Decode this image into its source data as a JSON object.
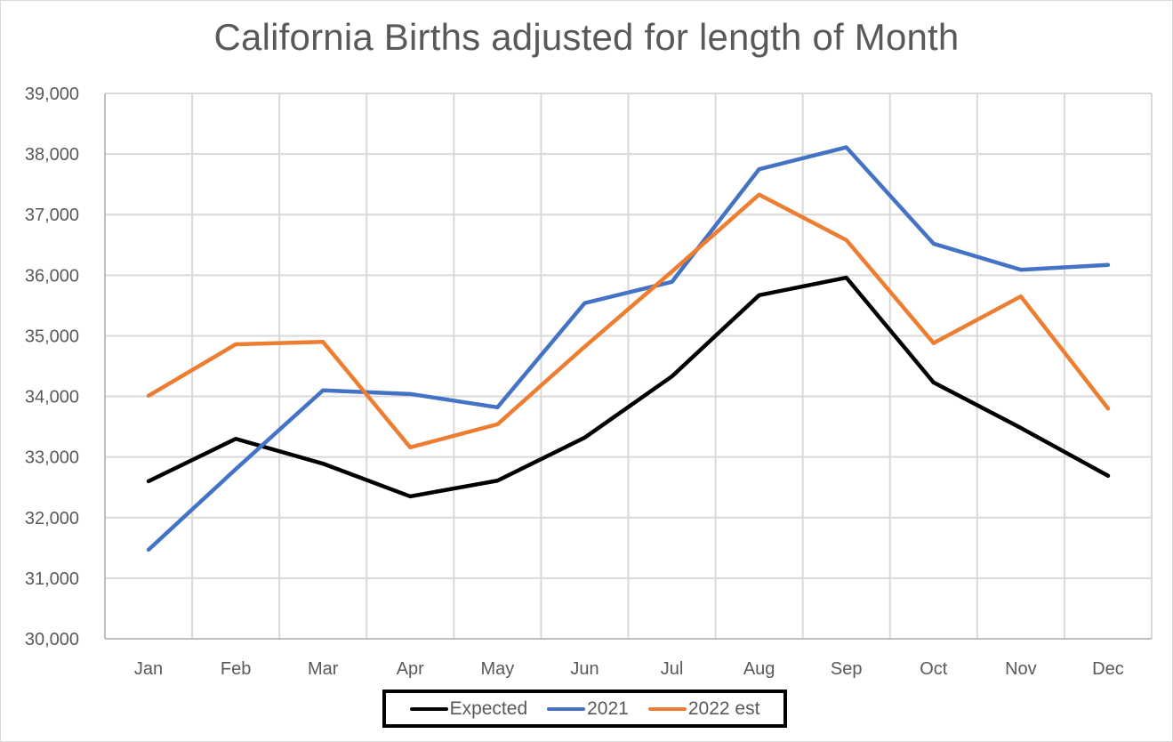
{
  "chart_data": {
    "type": "line",
    "title": "California Births adjusted for length of Month",
    "xlabel": "",
    "ylabel": "",
    "categories": [
      "Jan",
      "Feb",
      "Mar",
      "Apr",
      "May",
      "Jun",
      "Jul",
      "Aug",
      "Sep",
      "Oct",
      "Nov",
      "Dec"
    ],
    "ylim": [
      30000,
      39000
    ],
    "yticks": [
      30000,
      31000,
      32000,
      33000,
      34000,
      35000,
      36000,
      37000,
      38000,
      39000
    ],
    "ytick_labels": [
      "30,000",
      "31,000",
      "32,000",
      "33,000",
      "34,000",
      "35,000",
      "36,000",
      "37,000",
      "38,000",
      "39,000"
    ],
    "grid": true,
    "legend_position": "bottom",
    "series": [
      {
        "name": "Expected",
        "color": "#000000",
        "values": [
          32600,
          33300,
          32890,
          32350,
          32610,
          33320,
          34330,
          35670,
          35960,
          34230,
          33480,
          32690
        ]
      },
      {
        "name": "2021",
        "color": "#4472c4",
        "values": [
          31470,
          32800,
          34100,
          34040,
          33820,
          35540,
          35890,
          37750,
          38110,
          36520,
          36090,
          36170
        ]
      },
      {
        "name": "2022 est",
        "color": "#ed7d31",
        "values": [
          34010,
          34860,
          34900,
          33160,
          33540,
          34820,
          36060,
          37330,
          36580,
          34880,
          35650,
          33800
        ]
      }
    ]
  }
}
